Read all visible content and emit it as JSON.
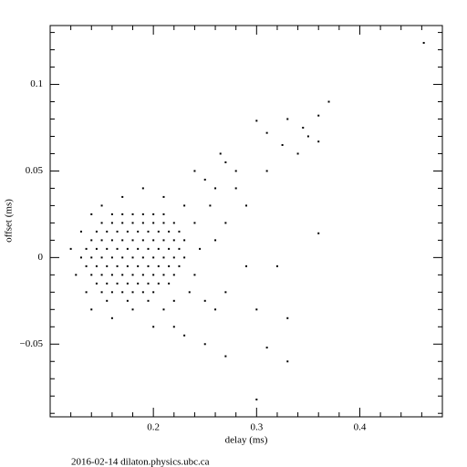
{
  "chart_data": {
    "type": "scatter",
    "xlabel": "delay (ms)",
    "ylabel": "offset (ms)",
    "footer": "2016-02-14 dilaton.physics.ubc.ca",
    "color": "#000000",
    "xlim": [
      0.1,
      0.48
    ],
    "ylim": [
      -0.092,
      0.134
    ],
    "xticks": [
      0.2,
      0.3,
      0.4
    ],
    "yticks": [
      {
        "value": -0.05,
        "label": "−0.05"
      },
      0,
      0.05,
      0.1
    ],
    "xminorticks": [
      0.12,
      0.14,
      0.16,
      0.18,
      0.22,
      0.24,
      0.26,
      0.28,
      0.32,
      0.34,
      0.36,
      0.38,
      0.42,
      0.44,
      0.46
    ],
    "yminorticks": [
      -0.09,
      -0.08,
      -0.07,
      -0.06,
      -0.04,
      -0.03,
      -0.02,
      -0.01,
      0.01,
      0.02,
      0.03,
      0.04,
      0.06,
      0.07,
      0.08,
      0.09,
      0.11,
      0.12,
      0.13
    ],
    "x": [
      0.16,
      0.17,
      0.18,
      0.19,
      0.2,
      0.21,
      0.15,
      0.16,
      0.17,
      0.18,
      0.19,
      0.2,
      0.21,
      0.22,
      0.145,
      0.155,
      0.165,
      0.175,
      0.185,
      0.195,
      0.205,
      0.215,
      0.225,
      0.14,
      0.15,
      0.16,
      0.17,
      0.18,
      0.19,
      0.2,
      0.21,
      0.22,
      0.23,
      0.135,
      0.145,
      0.155,
      0.165,
      0.175,
      0.185,
      0.195,
      0.205,
      0.215,
      0.225,
      0.13,
      0.14,
      0.15,
      0.16,
      0.17,
      0.18,
      0.19,
      0.2,
      0.21,
      0.22,
      0.23,
      0.135,
      0.145,
      0.155,
      0.165,
      0.175,
      0.185,
      0.195,
      0.205,
      0.215,
      0.225,
      0.14,
      0.15,
      0.16,
      0.17,
      0.18,
      0.19,
      0.2,
      0.21,
      0.22,
      0.145,
      0.155,
      0.165,
      0.175,
      0.185,
      0.195,
      0.205,
      0.215,
      0.15,
      0.16,
      0.17,
      0.18,
      0.19,
      0.2,
      0.155,
      0.175,
      0.195,
      0.12,
      0.125,
      0.13,
      0.14,
      0.15,
      0.17,
      0.19,
      0.21,
      0.23,
      0.24,
      0.245,
      0.24,
      0.235,
      0.22,
      0.21,
      0.18,
      0.16,
      0.14,
      0.135,
      0.2,
      0.22,
      0.25,
      0.26,
      0.255,
      0.25,
      0.24,
      0.26,
      0.265,
      0.27,
      0.28,
      0.28,
      0.27,
      0.27,
      0.26,
      0.25,
      0.23,
      0.27,
      0.3,
      0.31,
      0.33,
      0.32,
      0.29,
      0.3,
      0.3,
      0.31,
      0.33,
      0.35,
      0.36,
      0.37,
      0.36,
      0.34,
      0.36,
      0.462,
      0.31,
      0.29,
      0.325,
      0.345,
      0.33
    ],
    "values": [
      0.025,
      0.025,
      0.025,
      0.025,
      0.025,
      0.025,
      0.02,
      0.02,
      0.02,
      0.02,
      0.02,
      0.02,
      0.02,
      0.02,
      0.015,
      0.015,
      0.015,
      0.015,
      0.015,
      0.015,
      0.015,
      0.015,
      0.015,
      0.01,
      0.01,
      0.01,
      0.01,
      0.01,
      0.01,
      0.01,
      0.01,
      0.01,
      0.01,
      0.005,
      0.005,
      0.005,
      0.005,
      0.005,
      0.005,
      0.005,
      0.005,
      0.005,
      0.005,
      0,
      0,
      0,
      0,
      0,
      0,
      0,
      0,
      0,
      0,
      0,
      -0.005,
      -0.005,
      -0.005,
      -0.005,
      -0.005,
      -0.005,
      -0.005,
      -0.005,
      -0.005,
      -0.005,
      -0.01,
      -0.01,
      -0.01,
      -0.01,
      -0.01,
      -0.01,
      -0.01,
      -0.01,
      -0.01,
      -0.015,
      -0.015,
      -0.015,
      -0.015,
      -0.015,
      -0.015,
      -0.015,
      -0.015,
      -0.02,
      -0.02,
      -0.02,
      -0.02,
      -0.02,
      -0.02,
      -0.025,
      -0.025,
      -0.025,
      0.005,
      -0.01,
      0.015,
      0.025,
      0.03,
      0.035,
      0.04,
      0.035,
      0.03,
      0.02,
      0.005,
      -0.01,
      -0.02,
      -0.025,
      -0.03,
      -0.03,
      -0.035,
      -0.03,
      -0.02,
      -0.04,
      -0.04,
      -0.025,
      0.01,
      0.03,
      0.045,
      0.05,
      0.04,
      0.06,
      0.055,
      0.05,
      0.04,
      0.02,
      -0.02,
      -0.03,
      -0.05,
      -0.045,
      -0.057,
      -0.082,
      -0.052,
      -0.06,
      -0.005,
      -0.005,
      -0.03,
      0.079,
      0.072,
      0.08,
      0.07,
      0.082,
      0.09,
      0.067,
      0.06,
      0.014,
      0.124,
      0.05,
      0.03,
      0.065,
      0.075,
      -0.035
    ]
  }
}
